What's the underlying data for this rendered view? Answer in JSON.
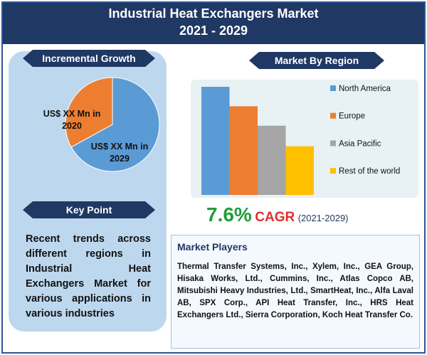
{
  "title": "Industrial Heat Exchangers Market",
  "subtitle": "2021 - 2029",
  "chart_data": [
    {
      "type": "pie",
      "title": "Incremental Growth",
      "categories": [
        "US$ XX Mn in 2020",
        "US$ XX Mn in 2029"
      ],
      "values": [
        33,
        67
      ],
      "colors": [
        "#ed7d31",
        "#5b9bd5"
      ]
    },
    {
      "type": "bar",
      "title": "Market By Region",
      "categories": [
        "North America",
        "Europe",
        "Asia Pacific",
        "Rest of the world"
      ],
      "values": [
        100,
        82,
        64,
        45
      ],
      "colors": [
        "#5b9bd5",
        "#ed7d31",
        "#a5a5a5",
        "#ffc000"
      ]
    }
  ],
  "cagr": {
    "value": "7.6%",
    "label": "CAGR",
    "period": "(2021-2029)"
  },
  "key_point": {
    "title": "Key Point",
    "text": "Recent trends across different regions in Industrial Heat Exchangers Market for various applications in various industries"
  },
  "market_players": {
    "title": "Market Players",
    "text": "Thermal Transfer Systems, Inc., Xylem, Inc., GEA Group, Hisaka Works, Ltd., Cummins, Inc., Atlas Copco AB, Mitsubishi Heavy Industries, Ltd., SmartHeat, Inc., Alfa Laval AB, SPX Corp., API Heat Transfer, Inc., HRS Heat Exchangers Ltd., Sierra Corporation, Koch Heat Transfer Co."
  }
}
